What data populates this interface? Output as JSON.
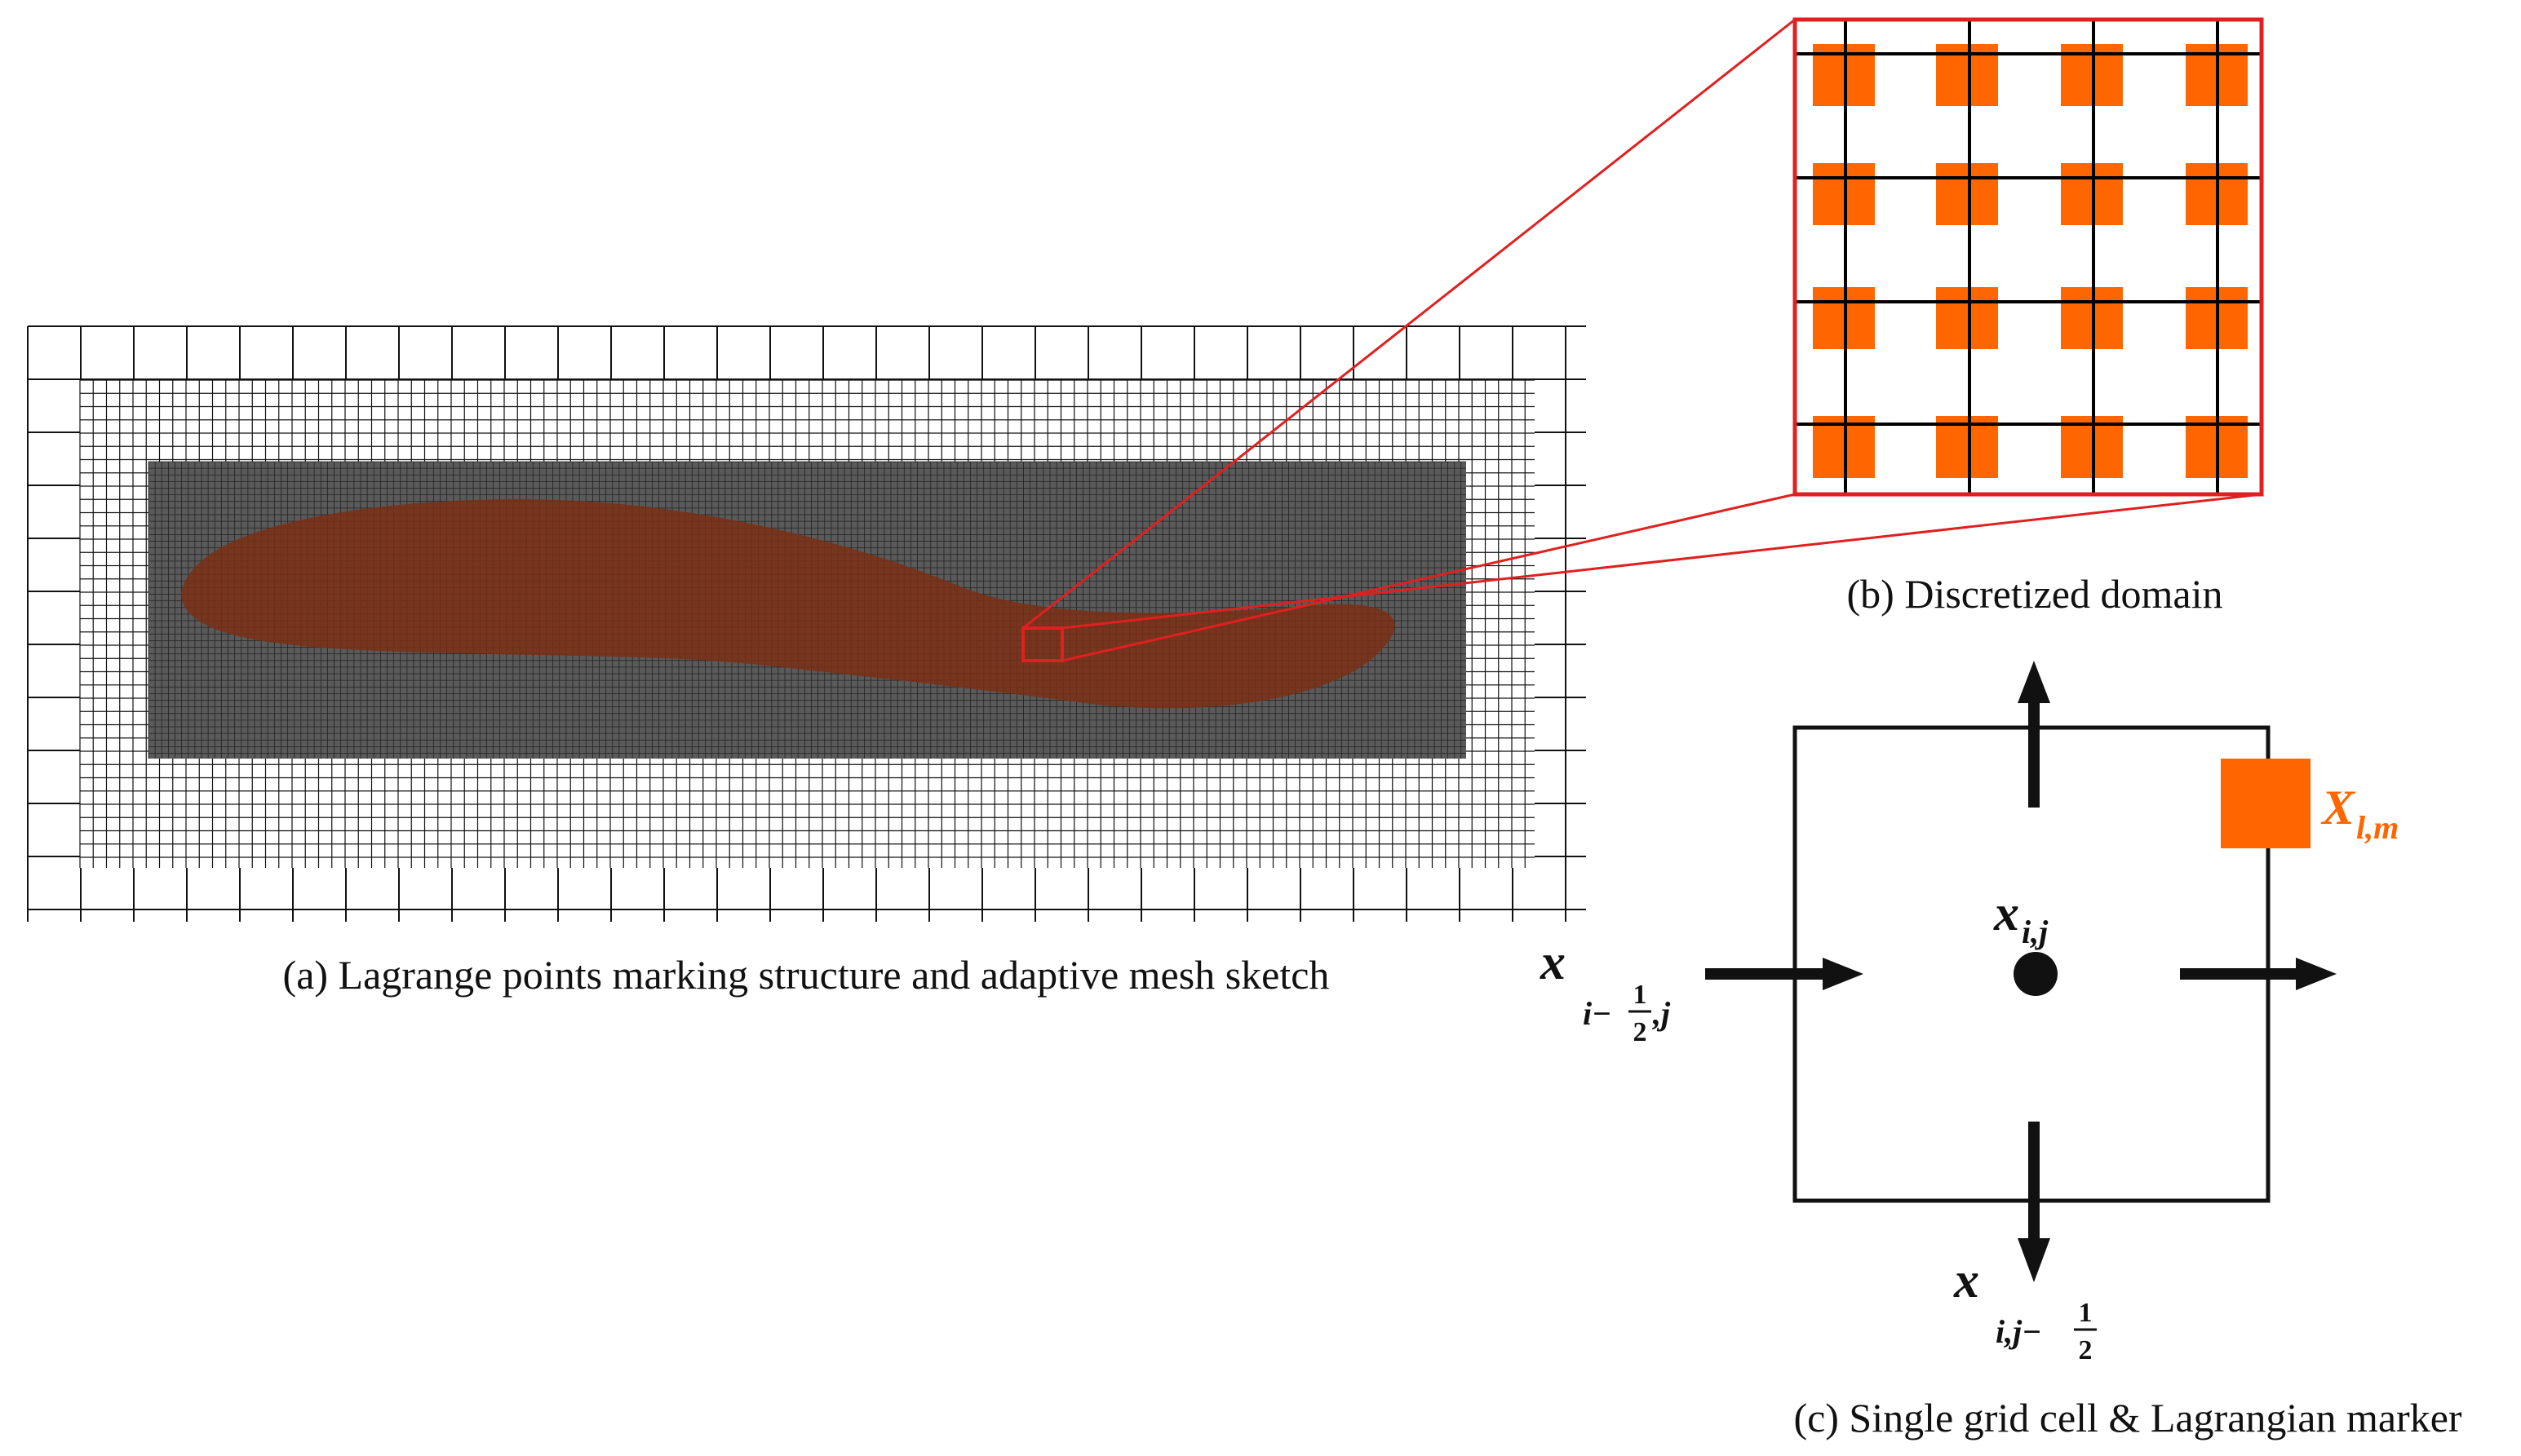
{
  "panels": {
    "a": {
      "caption": "(a) Lagrange points marking structure and adaptive mesh sketch"
    },
    "b": {
      "caption": "(b) Discretized domain"
    },
    "c": {
      "caption": "(c) Single grid cell & Lagrangian marker",
      "labels": {
        "center": {
          "symbol": "x",
          "sub": "i,j"
        },
        "west_face": {
          "symbol": "x",
          "sub_pre": "i−",
          "frac_num": "1",
          "frac_den": "2",
          "sub_post": ",j"
        },
        "south_face": {
          "symbol": "x",
          "sub_pre": "i,j−",
          "frac_num": "1",
          "frac_den": "2"
        },
        "marker": {
          "symbol": "X",
          "sub": "l,m"
        }
      }
    }
  },
  "mesh": {
    "levels": 3,
    "marker_grid": {
      "rows": 4,
      "cols": 4
    }
  },
  "colors": {
    "marker": "#ff6600",
    "zoom_box": "#e02020",
    "structure": "#7a2f14",
    "mesh_line": "#111111"
  }
}
